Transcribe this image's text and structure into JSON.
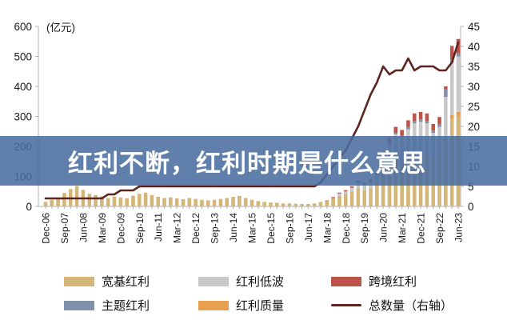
{
  "overlay": {
    "text": "红利不断，红利时期是什么意思",
    "background": "rgba(74,108,158,0.87)",
    "text_color": "#ffffff"
  },
  "chart_data": {
    "type": "bar",
    "subtype": "stacked-bars-with-right-axis-line",
    "unit_label": "(亿元)",
    "n_points": 67,
    "x_tick_every": 3,
    "x_tick_labels": [
      "Dec-06",
      "Sep-07",
      "Jun-08",
      "Mar-09",
      "Dec-09",
      "Sep-10",
      "Jun-11",
      "Mar-12",
      "Dec-12",
      "Sep-13",
      "Jun-14",
      "Mar-15",
      "Dec-15",
      "Sep-16",
      "Jun-17",
      "Mar-18",
      "Dec-18",
      "Sep-19",
      "Jun-20",
      "Mar-21",
      "Dec-21",
      "Sep-22",
      "Jun-23"
    ],
    "left_axis": {
      "min": 0,
      "max": 600,
      "step": 100,
      "ticks": [
        0,
        100,
        200,
        300,
        400,
        500,
        600
      ]
    },
    "right_axis": {
      "min": 0,
      "max": 45,
      "step": 5,
      "ticks": [
        0,
        5,
        10,
        15,
        20,
        25,
        30,
        35,
        40,
        45
      ]
    },
    "grid": false,
    "legend_position": "bottom",
    "stack_order": [
      "宽基红利",
      "红利质量",
      "红利低波",
      "主题红利",
      "跨境红利"
    ],
    "series": [
      {
        "name": "宽基红利",
        "type": "bar",
        "color": "#d5b679",
        "values": [
          15,
          22,
          28,
          45,
          58,
          68,
          55,
          42,
          38,
          33,
          28,
          33,
          30,
          27,
          36,
          42,
          46,
          38,
          32,
          28,
          30,
          27,
          24,
          28,
          25,
          22,
          20,
          22,
          25,
          28,
          32,
          35,
          28,
          22,
          18,
          15,
          13,
          12,
          10,
          10,
          9,
          8,
          8,
          10,
          15,
          18,
          28,
          35,
          40,
          50,
          60,
          55,
          60,
          70,
          100,
          120,
          140,
          135,
          150,
          160,
          165,
          160,
          150,
          160,
          210,
          290,
          300
        ]
      },
      {
        "name": "红利低波",
        "type": "bar",
        "color": "#c9c9c9",
        "values": [
          0,
          0,
          0,
          0,
          0,
          0,
          0,
          0,
          0,
          0,
          0,
          0,
          0,
          0,
          0,
          0,
          0,
          0,
          0,
          0,
          0,
          0,
          0,
          0,
          0,
          0,
          0,
          0,
          0,
          0,
          0,
          0,
          0,
          0,
          0,
          0,
          0,
          0,
          0,
          0,
          0,
          0,
          0,
          0,
          0,
          0,
          0,
          8,
          10,
          12,
          20,
          18,
          22,
          30,
          60,
          80,
          90,
          85,
          95,
          105,
          105,
          105,
          85,
          95,
          140,
          175,
          185
        ]
      },
      {
        "name": "跨境红利",
        "type": "bar",
        "color": "#bd5349",
        "values": [
          0,
          0,
          0,
          0,
          0,
          0,
          0,
          0,
          0,
          0,
          0,
          0,
          0,
          0,
          0,
          0,
          0,
          0,
          0,
          0,
          0,
          0,
          0,
          0,
          0,
          0,
          0,
          0,
          0,
          0,
          0,
          0,
          0,
          0,
          0,
          0,
          0,
          0,
          0,
          0,
          0,
          0,
          0,
          0,
          0,
          2,
          3,
          3,
          4,
          5,
          6,
          6,
          8,
          10,
          15,
          18,
          20,
          20,
          22,
          25,
          25,
          25,
          22,
          25,
          10,
          45,
          48
        ]
      },
      {
        "name": "主题红利",
        "type": "bar",
        "color": "#8191ab",
        "values": [
          0,
          0,
          0,
          0,
          0,
          0,
          0,
          0,
          0,
          0,
          0,
          0,
          0,
          0,
          0,
          0,
          0,
          0,
          0,
          0,
          0,
          0,
          0,
          0,
          0,
          0,
          0,
          0,
          0,
          0,
          0,
          0,
          0,
          0,
          0,
          0,
          0,
          0,
          0,
          0,
          0,
          0,
          0,
          0,
          0,
          0,
          0,
          0,
          0,
          0,
          0,
          0,
          0,
          0,
          0,
          0,
          5,
          5,
          8,
          8,
          8,
          8,
          8,
          8,
          25,
          10,
          10
        ]
      },
      {
        "name": "红利质量",
        "type": "bar",
        "color": "#e8a04f",
        "values": [
          0,
          0,
          0,
          0,
          0,
          0,
          0,
          0,
          0,
          0,
          0,
          0,
          0,
          0,
          0,
          0,
          0,
          0,
          0,
          0,
          0,
          0,
          0,
          0,
          0,
          0,
          0,
          0,
          0,
          0,
          0,
          0,
          0,
          0,
          0,
          0,
          0,
          0,
          0,
          0,
          0,
          0,
          0,
          0,
          0,
          0,
          0,
          0,
          0,
          0,
          0,
          0,
          0,
          5,
          8,
          10,
          10,
          10,
          12,
          12,
          12,
          12,
          10,
          10,
          15,
          15,
          15
        ]
      },
      {
        "name": "总数量（右轴）",
        "type": "line",
        "axis": "right",
        "color": "#5e2420",
        "values": [
          2,
          2,
          2,
          2,
          2,
          2,
          2,
          2,
          2,
          2,
          3,
          3,
          4,
          4,
          4,
          5,
          5,
          5,
          5,
          5,
          5,
          5,
          5,
          5,
          5,
          5,
          5,
          5,
          5,
          5,
          5,
          5,
          5,
          5,
          5,
          5,
          5,
          5,
          5,
          5,
          5,
          5,
          5,
          5,
          6,
          8,
          10,
          12,
          14,
          17,
          20,
          24,
          28,
          31,
          35,
          33,
          34,
          34,
          37,
          34,
          35,
          35,
          35,
          34,
          34,
          36,
          41
        ]
      }
    ]
  },
  "legend": {
    "items": [
      {
        "label": "宽基红利",
        "color": "#d5b679",
        "kind": "box"
      },
      {
        "label": "红利低波",
        "color": "#c9c9c9",
        "kind": "box"
      },
      {
        "label": "跨境红利",
        "color": "#bd5349",
        "kind": "box"
      },
      {
        "label": "主题红利",
        "color": "#8191ab",
        "kind": "box"
      },
      {
        "label": "红利质量",
        "color": "#e8a04f",
        "kind": "box"
      },
      {
        "label": "总数量（右轴）",
        "color": "#5e2420",
        "kind": "line"
      }
    ]
  },
  "colors": {
    "axis_line": "#b3b3b3",
    "axis_text": "#1a1a1a",
    "background": "#ffffff"
  }
}
